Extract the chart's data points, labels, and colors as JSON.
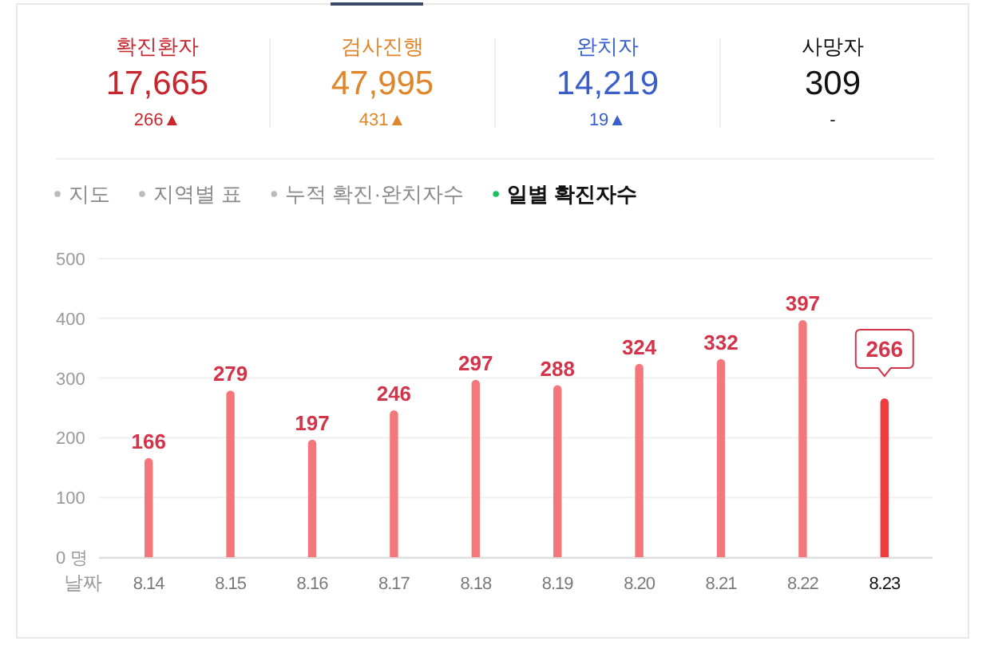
{
  "chart_data": [
    {
      "type": "other",
      "annotations": [
        "확진환자",
        "17,665",
        "266▲",
        "검사진행",
        "47,995",
        "431▲",
        "완치자",
        "14,219",
        "19▲",
        "사망자",
        "309",
        "-"
      ],
      "colors": [
        "#c8262e",
        "#e0862a",
        "#3a5fcd",
        "#111111"
      ]
    },
    {
      "type": "bar",
      "annotations": [
        "지도",
        "지역별 표",
        "누적 확진·완치자수",
        "일별 확진자수"
      ],
      "xlabel": "날짜",
      "categories": [
        "8.14",
        "8.15",
        "8.16",
        "8.17",
        "8.18",
        "8.19",
        "8.20",
        "8.21",
        "8.22",
        "8.23"
      ],
      "values": [
        166,
        279,
        197,
        246,
        297,
        288,
        324,
        332,
        397,
        266
      ],
      "colors": [
        "#f4777b",
        "#f4777b",
        "#f4777b",
        "#f4777b",
        "#f4777b",
        "#f4777b",
        "#f4777b",
        "#f4777b",
        "#f4777b",
        "#f03c3f"
      ],
      "ylim": [
        0,
        500
      ],
      "yticks": [
        {
          "value": 0,
          "label": "0 명"
        },
        100,
        200,
        300,
        400,
        500
      ],
      "grid": "y",
      "data_labels": true
    }
  ]
}
